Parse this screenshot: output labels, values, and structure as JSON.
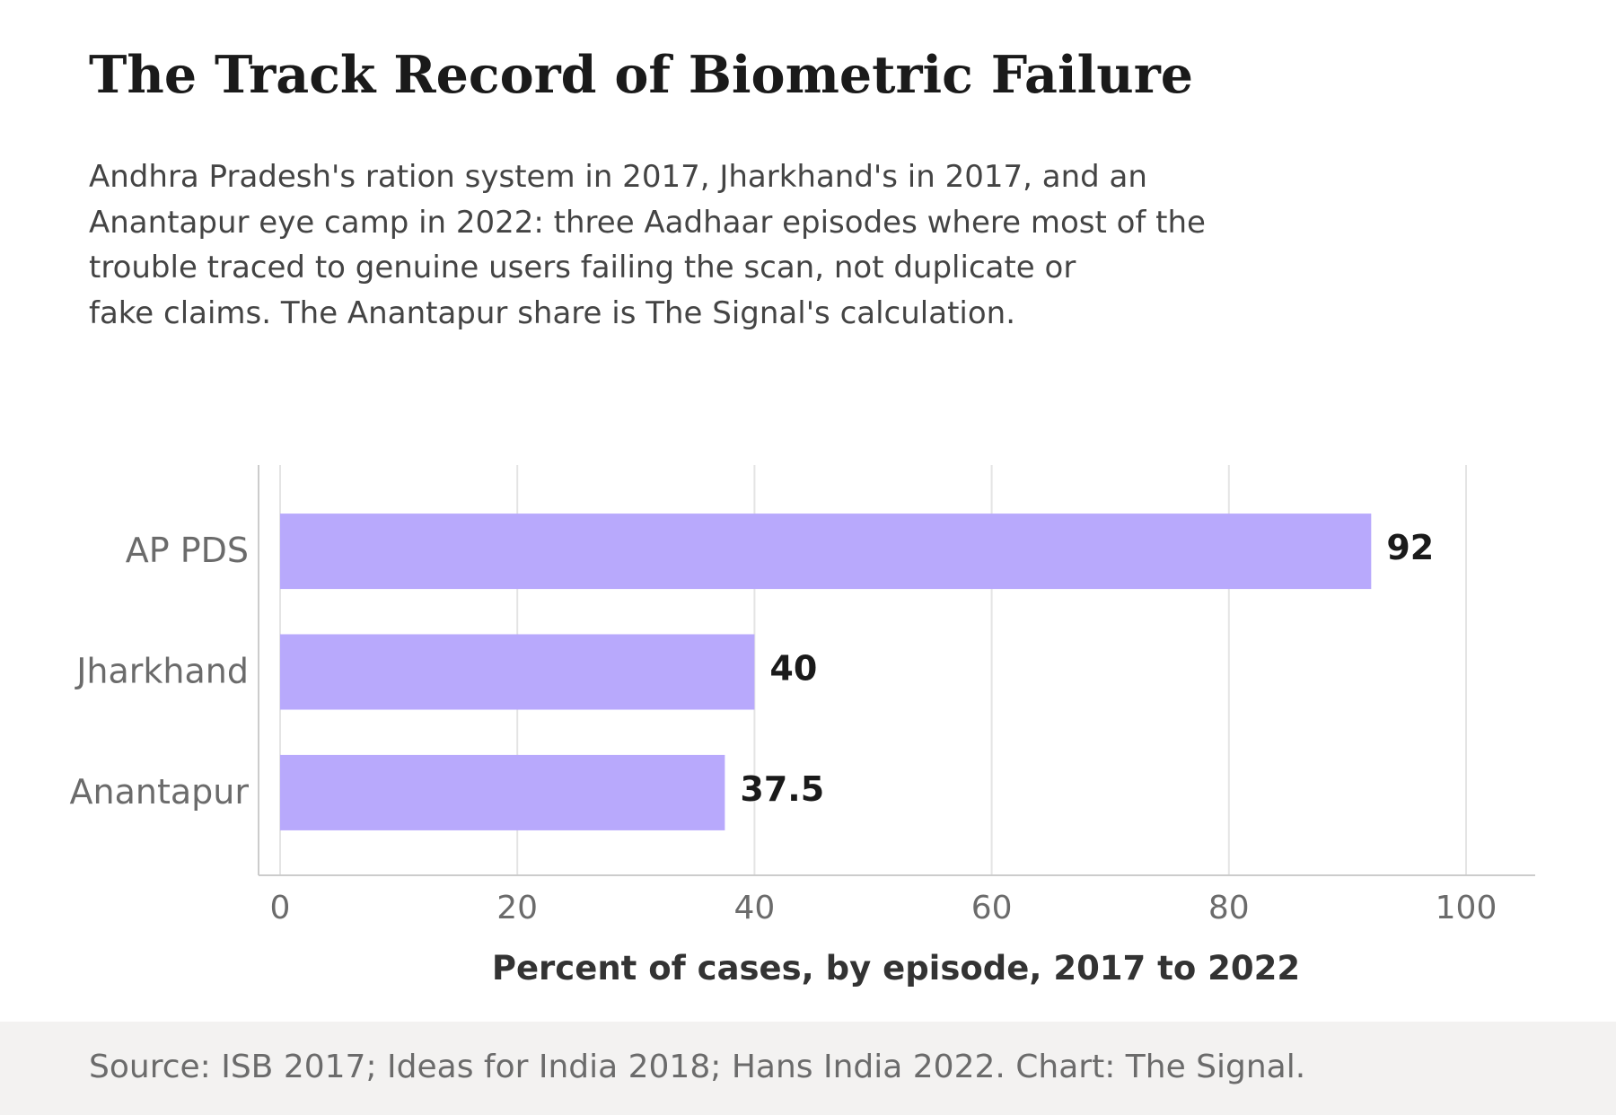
{
  "header": {
    "title": "The Track Record of Biometric Failure",
    "subtitle_lines": [
      "Andhra Pradesh's ration system in 2017, Jharkhand's in 2017, and an",
      "Anantapur eye camp in 2022: three Aadhaar episodes where most of the",
      "trouble traced to genuine users failing the scan, not duplicate or",
      "fake claims. The Anantapur share is The Signal's calculation."
    ]
  },
  "chart_data": {
    "type": "bar",
    "orientation": "horizontal",
    "categories": [
      "AP PDS",
      "Jharkhand",
      "Anantapur"
    ],
    "values": [
      92,
      40,
      37.5
    ],
    "value_labels": [
      "92",
      "40",
      "37.5"
    ],
    "xlabel": "Percent of cases, by episode, 2017 to 2022",
    "ylabel": "",
    "xlim": [
      0,
      100
    ],
    "xticks": [
      0,
      20,
      40,
      60,
      80,
      100
    ],
    "grid": "vertical",
    "bar_color": "#b8a9fc",
    "grid_color": "#e4e4e4",
    "axis_color": "#cccccc",
    "legend": "none"
  },
  "footer": {
    "source": "Source: ISB 2017; Ideas for India 2018; Hans India 2022. Chart: The Signal."
  }
}
